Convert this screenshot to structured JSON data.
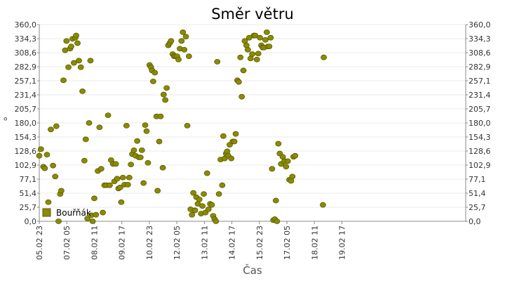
{
  "chart_data": {
    "type": "scatter",
    "title": "Směr větru",
    "xlabel": "Čas",
    "ylabel": "°",
    "ylim": [
      0,
      360
    ],
    "xlim": [
      0,
      15.5
    ],
    "y_ticks": [
      "0,0",
      "25,7",
      "51,4",
      "77,1",
      "102,9",
      "128,6",
      "154,3",
      "180,0",
      "205,7",
      "231,4",
      "257,1",
      "282,9",
      "308,6",
      "334,3",
      "360,0"
    ],
    "x_ticks": [
      {
        "x": 0,
        "label": "05.02 23"
      },
      {
        "x": 1.0,
        "label": "07.02 05"
      },
      {
        "x": 2.0,
        "label": "08.02 11"
      },
      {
        "x": 3.0,
        "label": "09.02 17"
      },
      {
        "x": 4.0,
        "label": "10.02 23"
      },
      {
        "x": 5.0,
        "label": "12.02 05"
      },
      {
        "x": 6.0,
        "label": "13.02 11"
      },
      {
        "x": 7.0,
        "label": "14.02 17"
      },
      {
        "x": 8.0,
        "label": "15.02 23"
      },
      {
        "x": 9.0,
        "label": "17.02 05"
      },
      {
        "x": 10.0,
        "label": "18.02 11"
      },
      {
        "x": 11.0,
        "label": "19.02 17"
      }
    ],
    "grid": true,
    "legend_position": "bottom-left",
    "colors": {
      "marker": "#8b8b00",
      "marker_edge": "#5a5a00",
      "grid": "#ebebeb",
      "axis": "#888888"
    },
    "series": [
      {
        "name": "Bouřňák",
        "points": [
          [
            0.0,
            120
          ],
          [
            0.06,
            132
          ],
          [
            0.15,
            100
          ],
          [
            0.2,
            97
          ],
          [
            0.28,
            122
          ],
          [
            0.33,
            35
          ],
          [
            0.42,
            168
          ],
          [
            0.5,
            102
          ],
          [
            0.58,
            82
          ],
          [
            0.62,
            174
          ],
          [
            0.7,
            0
          ],
          [
            0.76,
            50
          ],
          [
            0.8,
            56
          ],
          [
            0.88,
            258
          ],
          [
            0.94,
            313
          ],
          [
            0.99,
            330
          ],
          [
            1.06,
            282
          ],
          [
            1.12,
            316
          ],
          [
            1.16,
            320
          ],
          [
            1.21,
            334
          ],
          [
            1.26,
            290
          ],
          [
            1.31,
            336
          ],
          [
            1.34,
            340
          ],
          [
            1.39,
            326
          ],
          [
            1.44,
            294
          ],
          [
            1.51,
            282
          ],
          [
            1.57,
            238
          ],
          [
            1.64,
            111
          ],
          [
            1.69,
            150
          ],
          [
            1.75,
            5
          ],
          [
            1.81,
            180
          ],
          [
            1.86,
            294
          ],
          [
            1.89,
            11
          ],
          [
            1.94,
            0
          ],
          [
            2.0,
            42
          ],
          [
            2.06,
            12
          ],
          [
            2.13,
            92
          ],
          [
            2.19,
            172
          ],
          [
            2.25,
            96
          ],
          [
            2.31,
            16
          ],
          [
            2.37,
            66
          ],
          [
            2.44,
            66
          ],
          [
            2.5,
            194
          ],
          [
            2.56,
            66
          ],
          [
            2.61,
            112
          ],
          [
            2.68,
            105
          ],
          [
            2.73,
            73
          ],
          [
            2.78,
            105
          ],
          [
            2.83,
            78
          ],
          [
            2.88,
            60
          ],
          [
            2.94,
            62
          ],
          [
            2.98,
            35
          ],
          [
            3.04,
            80
          ],
          [
            3.1,
            67
          ],
          [
            3.17,
            175
          ],
          [
            3.22,
            67
          ],
          [
            3.27,
            80
          ],
          [
            3.33,
            104
          ],
          [
            3.38,
            123
          ],
          [
            3.44,
            130
          ],
          [
            3.5,
            120
          ],
          [
            3.56,
            147
          ],
          [
            3.62,
            117
          ],
          [
            3.68,
            117
          ],
          [
            3.73,
            130
          ],
          [
            3.79,
            70
          ],
          [
            3.85,
            176
          ],
          [
            3.9,
            165
          ],
          [
            3.95,
            107
          ],
          [
            4.01,
            286
          ],
          [
            4.06,
            282
          ],
          [
            4.1,
            276
          ],
          [
            4.14,
            256
          ],
          [
            4.2,
            272
          ],
          [
            4.26,
            192
          ],
          [
            4.3,
            56
          ],
          [
            4.36,
            146
          ],
          [
            4.41,
            192
          ],
          [
            4.49,
            98
          ],
          [
            4.52,
            232
          ],
          [
            4.58,
            222
          ],
          [
            4.63,
            244
          ],
          [
            4.69,
            322
          ],
          [
            4.74,
            326
          ],
          [
            4.79,
            330
          ],
          [
            4.85,
            306
          ],
          [
            4.9,
            302
          ],
          [
            4.95,
            302
          ],
          [
            5.01,
            302
          ],
          [
            5.06,
            296
          ],
          [
            5.11,
            316
          ],
          [
            5.17,
            330
          ],
          [
            5.22,
            346
          ],
          [
            5.27,
            314
          ],
          [
            5.33,
            338
          ],
          [
            5.38,
            175
          ],
          [
            5.44,
            302
          ],
          [
            5.5,
            22
          ],
          [
            5.55,
            12
          ],
          [
            5.6,
            52
          ],
          [
            5.66,
            20
          ],
          [
            5.71,
            44
          ],
          [
            5.76,
            32
          ],
          [
            5.82,
            40
          ],
          [
            5.88,
            14
          ],
          [
            5.93,
            28
          ],
          [
            5.98,
            50
          ],
          [
            6.04,
            16
          ],
          [
            6.1,
            88
          ],
          [
            6.15,
            22
          ],
          [
            6.21,
            32
          ],
          [
            6.27,
            30
          ],
          [
            6.32,
            10
          ],
          [
            6.37,
            4
          ],
          [
            6.42,
            0
          ],
          [
            6.47,
            292
          ],
          [
            6.53,
            50
          ],
          [
            6.59,
            113
          ],
          [
            6.65,
            66
          ],
          [
            6.69,
            156
          ],
          [
            6.74,
            115
          ],
          [
            6.79,
            124
          ],
          [
            6.83,
            128
          ],
          [
            6.87,
            120
          ],
          [
            6.92,
            140
          ],
          [
            6.98,
            115
          ],
          [
            7.03,
            146
          ],
          [
            7.09,
            146
          ],
          [
            7.14,
            160
          ],
          [
            7.2,
            258
          ],
          [
            7.25,
            255
          ],
          [
            7.31,
            300
          ],
          [
            7.36,
            228
          ],
          [
            7.42,
            276
          ],
          [
            7.47,
            330
          ],
          [
            7.53,
            322
          ],
          [
            7.58,
            314
          ],
          [
            7.63,
            336
          ],
          [
            7.68,
            298
          ],
          [
            7.74,
            306
          ],
          [
            7.8,
            340
          ],
          [
            7.85,
            340
          ],
          [
            7.91,
            296
          ],
          [
            7.96,
            307
          ],
          [
            8.02,
            336
          ],
          [
            8.07,
            322
          ],
          [
            8.12,
            318
          ],
          [
            8.17,
            318
          ],
          [
            8.22,
            332
          ],
          [
            8.27,
            346
          ],
          [
            8.31,
            320
          ],
          [
            8.36,
            320
          ],
          [
            8.41,
            336
          ],
          [
            8.46,
            96
          ],
          [
            8.51,
            2
          ],
          [
            8.56,
            4
          ],
          [
            8.6,
            38
          ],
          [
            8.64,
            0
          ],
          [
            8.69,
            142
          ],
          [
            8.74,
            124
          ],
          [
            8.79,
            105
          ],
          [
            8.85,
            118
          ],
          [
            8.91,
            110
          ],
          [
            8.97,
            100
          ],
          [
            9.03,
            110
          ],
          [
            9.09,
            76
          ],
          [
            9.15,
            74
          ],
          [
            9.2,
            82
          ],
          [
            9.24,
            118
          ],
          [
            9.3,
            120
          ],
          [
            10.31,
            30
          ],
          [
            10.34,
            300
          ]
        ]
      }
    ]
  }
}
